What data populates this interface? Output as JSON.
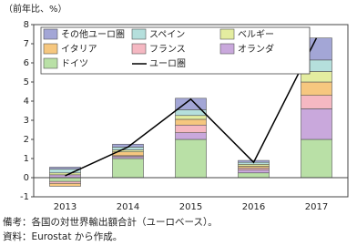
{
  "chart_data": {
    "type": "bar",
    "stacked": true,
    "y_unit_label": "（前年比、%）",
    "categories": [
      "2013",
      "2014",
      "2015",
      "2016",
      "2017"
    ],
    "series": [
      {
        "name": "ドイツ",
        "color": "#b9e0a6",
        "values": [
          -0.2,
          1.0,
          2.0,
          0.25,
          2.0
        ]
      },
      {
        "name": "オランダ",
        "color": "#c9a8dc",
        "values": [
          0.15,
          0.1,
          0.35,
          0.15,
          1.6
        ]
      },
      {
        "name": "フランス",
        "color": "#f5b8c2",
        "values": [
          -0.1,
          0.05,
          0.4,
          0.1,
          0.7
        ]
      },
      {
        "name": "イタリア",
        "color": "#f6c77f",
        "values": [
          -0.15,
          0.2,
          0.3,
          0.1,
          0.7
        ]
      },
      {
        "name": "ベルギー",
        "color": "#e4eda0",
        "values": [
          0.1,
          0.1,
          0.2,
          0.1,
          0.55
        ]
      },
      {
        "name": "スペイン",
        "color": "#b5dfdc",
        "values": [
          0.2,
          0.15,
          0.3,
          0.1,
          0.6
        ]
      },
      {
        "name": "その他ユーロ圏",
        "color": "#a3a6d6",
        "values": [
          0.1,
          0.15,
          0.6,
          0.1,
          1.15
        ]
      }
    ],
    "line": {
      "name": "ユーロ圏",
      "color": "#000000",
      "values": [
        0.1,
        1.6,
        4.1,
        0.8,
        7.3
      ]
    },
    "legend_order": [
      6,
      5,
      4,
      3,
      2,
      1,
      0
    ],
    "ylim": [
      -1,
      8
    ],
    "yticks": [
      -1,
      0,
      1,
      2,
      3,
      4,
      5,
      6,
      7,
      8
    ],
    "notes": [
      "備考：各国の対世界輸出額合計（ユーロベース）。",
      "資料：Eurostat から作成。"
    ]
  }
}
